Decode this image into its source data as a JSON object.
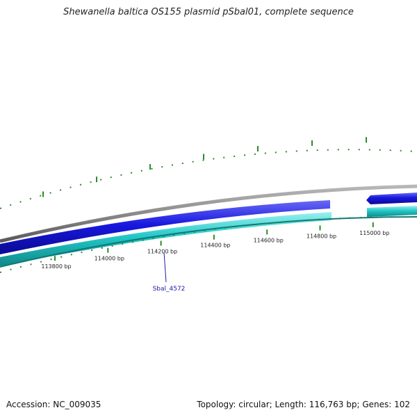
{
  "title": "Shewanella baltica OS155 plasmid pSbal01, complete sequence",
  "accession_text": "Accession: NC_009035",
  "topology_text": "Topology: circular; Length: 116,763 bp; Genes: 102",
  "colors": {
    "backbone": "#8a8a8a",
    "forward_gene": "#1818e0",
    "reverse_gene": "#22c8c8",
    "gc_ticks": "#2a8a2a",
    "gene_label": "#1a1aa8"
  },
  "ticks": [
    {
      "bp": 113800,
      "label": "113800 bp"
    },
    {
      "bp": 114000,
      "label": "114000 bp"
    },
    {
      "bp": 114200,
      "label": "114200 bp"
    },
    {
      "bp": 114400,
      "label": "114400 bp"
    },
    {
      "bp": 114600,
      "label": "114600 bp"
    },
    {
      "bp": 114800,
      "label": "114800 bp"
    },
    {
      "bp": 115000,
      "label": "115000 bp"
    }
  ],
  "genes": [
    {
      "name": "Sbal_4572",
      "labeled": true
    }
  ]
}
